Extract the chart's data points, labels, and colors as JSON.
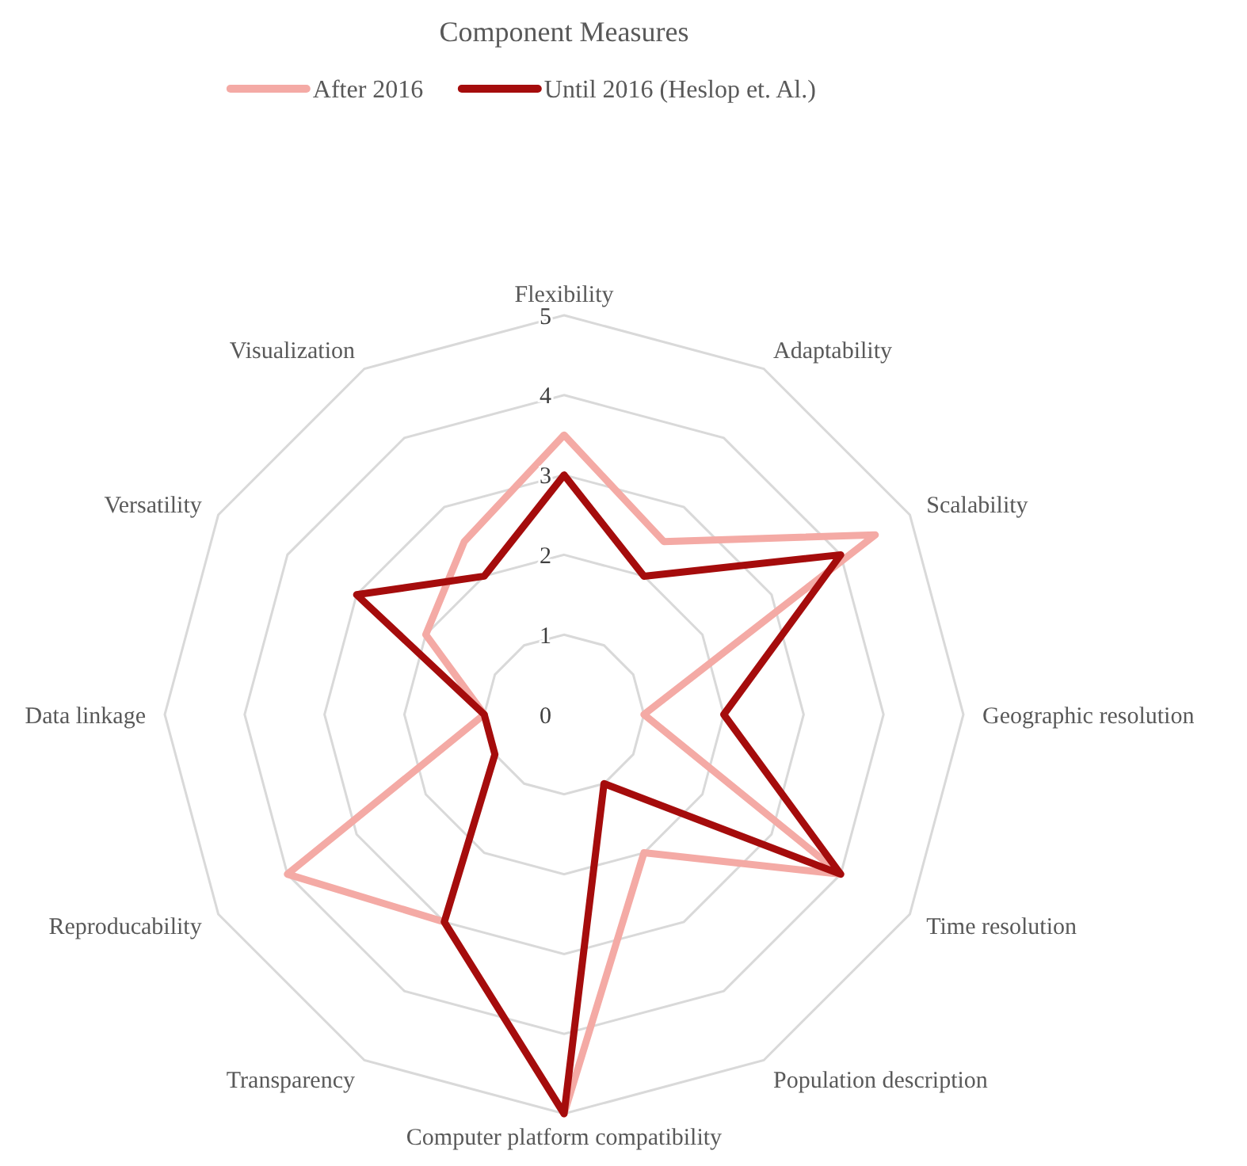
{
  "chart_data": {
    "type": "radar",
    "title": "Component Measures",
    "categories": [
      "Flexibility",
      "Adaptability",
      "Scalability",
      "Geographic resolution",
      "Time resolution",
      "Population description",
      "Computer platform compatibility",
      "Transparency",
      "Reproducability",
      "Data linkage",
      "Versatility",
      "Visualization"
    ],
    "series": [
      {
        "name": "After 2016",
        "color": "#f4aaa5",
        "values": [
          3.5,
          2.5,
          4.5,
          1,
          4,
          2,
          5,
          3,
          4,
          1,
          2,
          2.5
        ]
      },
      {
        "name": "Until 2016 (Heslop et. Al.)",
        "color": "#a50c0c",
        "values": [
          3,
          2,
          4,
          2,
          4,
          1,
          5,
          3,
          1,
          1,
          3,
          2
        ]
      }
    ],
    "ylim": [
      0,
      5
    ],
    "yticks": [
      0,
      1,
      2,
      3,
      4,
      5
    ],
    "grid": true,
    "legend": "top"
  }
}
